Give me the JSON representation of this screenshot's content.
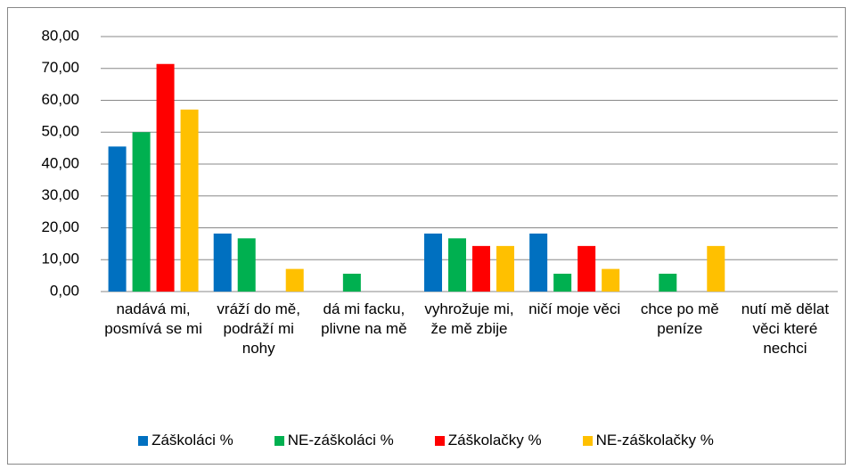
{
  "chart_data": {
    "type": "bar",
    "categories": [
      "nadává mi, posmívá se mi",
      "vráží do mě, podráží mi nohy",
      "dá mi facku, plivne na mě",
      "vyhrožuje mi, že mě zbije",
      "ničí moje věci",
      "chce po mě peníze",
      "nutí mě dělat věci které nechci"
    ],
    "series": [
      {
        "name": "Záškoláci %",
        "color": "#0070c0",
        "values": [
          45.5,
          18.2,
          0,
          18.2,
          18.2,
          0,
          0
        ]
      },
      {
        "name": "NE-záškoláci %",
        "color": "#00b050",
        "values": [
          50.0,
          16.7,
          5.6,
          16.7,
          5.6,
          5.6,
          0
        ]
      },
      {
        "name": "Záškolačky %",
        "color": "#ff0000",
        "values": [
          71.4,
          0,
          0,
          14.3,
          14.3,
          0,
          0
        ]
      },
      {
        "name": "NE-záškolačky %",
        "color": "#ffc000",
        "values": [
          57.1,
          7.1,
          0,
          14.3,
          7.1,
          14.3,
          0
        ]
      }
    ],
    "ylim": [
      0,
      80
    ],
    "yticks": [
      {
        "value": 0,
        "label": "0,00"
      },
      {
        "value": 10,
        "label": "10,00"
      },
      {
        "value": 20,
        "label": "20,00"
      },
      {
        "value": 30,
        "label": "30,00"
      },
      {
        "value": 40,
        "label": "40,00"
      },
      {
        "value": 50,
        "label": "50,00"
      },
      {
        "value": 60,
        "label": "60,00"
      },
      {
        "value": 70,
        "label": "70,00"
      },
      {
        "value": 80,
        "label": "80,00"
      }
    ],
    "grid": true,
    "legend": "bottom"
  }
}
